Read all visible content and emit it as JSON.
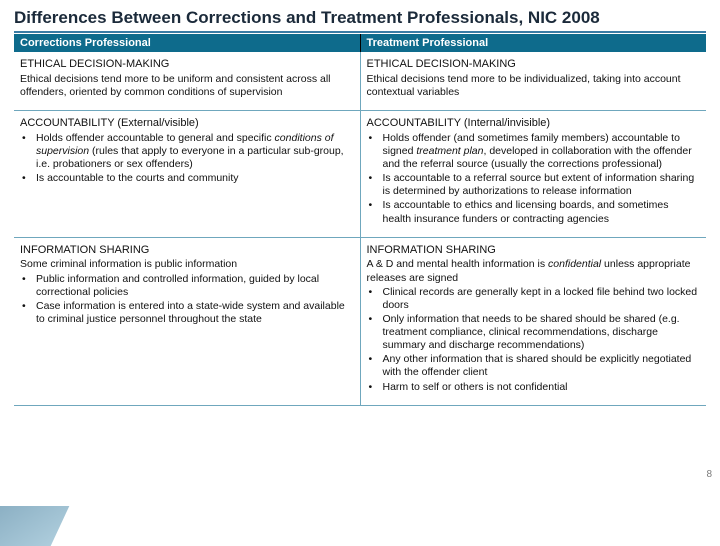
{
  "title": "Differences Between Corrections and Treatment Professionals, NIC 2008",
  "headers": {
    "left": "Corrections Professional",
    "right": "Treatment Professional"
  },
  "rows": [
    {
      "left": {
        "heading": "ETHICAL DECISION-MAKING",
        "lead": "Ethical decisions tend more to be uniform and consistent across all offenders, oriented by common conditions of supervision",
        "bullets": []
      },
      "right": {
        "heading": "ETHICAL DECISION-MAKING",
        "lead": "Ethical decisions tend more to be individualized, taking into account contextual variables",
        "bullets": []
      }
    },
    {
      "left": {
        "heading": "ACCOUNTABILITY (External/visible)",
        "lead": "",
        "bullets": [
          {
            "pre": "Holds offender accountable to general and specific ",
            "it": "conditions of supervision",
            "post": " (rules that apply to everyone in a particular sub-group, i.e. probationers or sex offenders)"
          },
          {
            "pre": "Is accountable to the courts and community",
            "it": "",
            "post": ""
          }
        ]
      },
      "right": {
        "heading": "ACCOUNTABILITY (Internal/invisible)",
        "lead": "",
        "bullets": [
          {
            "pre": "Holds offender (and sometimes family members) accountable to signed ",
            "it": "treatment plan",
            "post": ", developed in collaboration with the offender and the referral source (usually the corrections professional)"
          },
          {
            "pre": "Is accountable to a referral source but extent of information sharing is determined by authorizations to release information",
            "it": "",
            "post": ""
          },
          {
            "pre": "Is accountable to ethics and licensing boards, and sometimes health insurance funders or contracting agencies",
            "it": "",
            "post": ""
          }
        ]
      }
    },
    {
      "left": {
        "heading": "INFORMATION SHARING",
        "lead": "Some criminal information is public information",
        "bullets": [
          {
            "pre": "Public information and controlled information, guided by local correctional policies",
            "it": "",
            "post": ""
          },
          {
            "pre": "Case information is entered into a state-wide system and available to criminal justice personnel throughout the state",
            "it": "",
            "post": ""
          }
        ]
      },
      "right": {
        "heading": "INFORMATION SHARING",
        "leadParts": {
          "pre": "A & D and mental health information is ",
          "it": "confidential",
          "post": " unless appropriate releases are signed"
        },
        "bullets": [
          {
            "pre": "Clinical records are generally kept in a locked file behind two locked doors",
            "it": "",
            "post": ""
          },
          {
            "pre": "Only information that needs to be shared should be shared (e.g. treatment compliance, clinical recommendations, discharge summary and discharge recommendations)",
            "it": "",
            "post": ""
          },
          {
            "pre": "Any other information that is shared should be explicitly negotiated with the offender client",
            "it": "",
            "post": ""
          },
          {
            "pre": "Harm to self or others is not confidential",
            "it": "",
            "post": ""
          }
        ]
      }
    }
  ],
  "pageNumber": "8",
  "colors": {
    "headerBg": "#0e6b8c",
    "rule": "#3a7ca5",
    "cellBorder": "#6fa7bd"
  }
}
